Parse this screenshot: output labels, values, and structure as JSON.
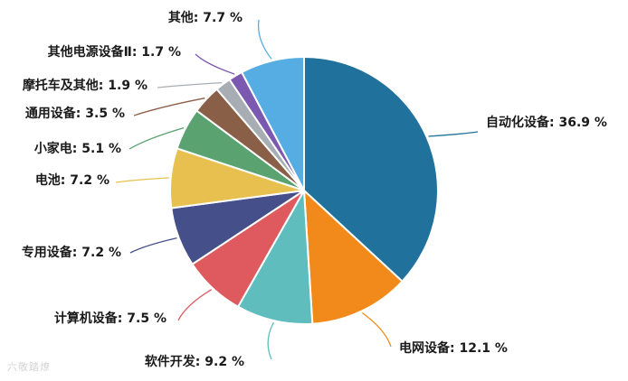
{
  "chart_data": {
    "type": "pie",
    "slices": [
      {
        "label": "自动化设备",
        "value": 36.9,
        "text": "自动化设备: 36.9 %",
        "color": "#20719c"
      },
      {
        "label": "电网设备",
        "value": 12.1,
        "text": "电网设备: 12.1 %",
        "color": "#f28a1b"
      },
      {
        "label": "软件开发",
        "value": 9.2,
        "text": "软件开发: 9.2 %",
        "color": "#5fbdbd"
      },
      {
        "label": "计算机设备",
        "value": 7.5,
        "text": "计算机设备: 7.5 %",
        "color": "#de5a5e"
      },
      {
        "label": "专用设备",
        "value": 7.2,
        "text": "专用设备: 7.2 %",
        "color": "#45508a"
      },
      {
        "label": "电池",
        "value": 7.2,
        "text": "电池: 7.2 %",
        "color": "#e8c04f"
      },
      {
        "label": "小家电",
        "value": 5.1,
        "text": "小家电: 5.1 %",
        "color": "#5aa371"
      },
      {
        "label": "通用设备",
        "value": 3.5,
        "text": "通用设备: 3.5 %",
        "color": "#8a5f47"
      },
      {
        "label": "摩托车及其他",
        "value": 1.9,
        "text": "摩托车及其他: 1.9 %",
        "color": "#a8adb3"
      },
      {
        "label": "其他电源设备Ⅱ",
        "value": 1.7,
        "text": "其他电源设备Ⅱ: 1.7 %",
        "color": "#7b59b0"
      },
      {
        "label": "其他",
        "value": 7.7,
        "text": "其他: 7.7 %",
        "color": "#56ade3"
      }
    ],
    "unit": "%",
    "legend": "none"
  },
  "watermark": "六敬踏燎"
}
